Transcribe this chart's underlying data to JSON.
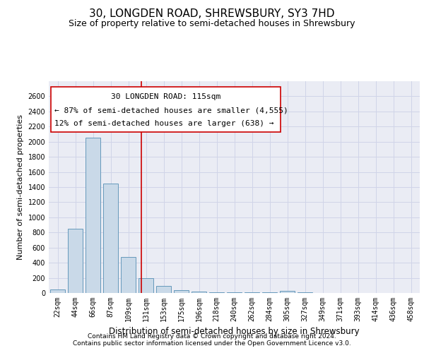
{
  "title": "30, LONGDEN ROAD, SHREWSBURY, SY3 7HD",
  "subtitle": "Size of property relative to semi-detached houses in Shrewsbury",
  "xlabel": "Distribution of semi-detached houses by size in Shrewsbury",
  "ylabel": "Number of semi-detached properties",
  "footnote1": "Contains HM Land Registry data © Crown copyright and database right 2024.",
  "footnote2": "Contains public sector information licensed under the Open Government Licence v3.0.",
  "bar_labels": [
    "22sqm",
    "44sqm",
    "66sqm",
    "87sqm",
    "109sqm",
    "131sqm",
    "153sqm",
    "175sqm",
    "196sqm",
    "218sqm",
    "240sqm",
    "262sqm",
    "284sqm",
    "305sqm",
    "327sqm",
    "349sqm",
    "371sqm",
    "393sqm",
    "414sqm",
    "436sqm",
    "458sqm"
  ],
  "bar_values": [
    50,
    850,
    2050,
    1450,
    480,
    200,
    90,
    40,
    20,
    10,
    5,
    5,
    5,
    30,
    5,
    3,
    3,
    3,
    3,
    3,
    3
  ],
  "bar_color": "#c9d9e8",
  "bar_edge_color": "#6699bb",
  "grid_color": "#d0d4e8",
  "background_color": "#eaecf4",
  "annotation_box_color": "#cc0000",
  "vline_color": "#cc0000",
  "vline_x": 4.72,
  "annotation_text_line1": "30 LONGDEN ROAD: 115sqm",
  "annotation_text_line2": "← 87% of semi-detached houses are smaller (4,555)",
  "annotation_text_line3": "12% of semi-detached houses are larger (638) →",
  "ylim_max": 2800,
  "yticks": [
    0,
    200,
    400,
    600,
    800,
    1000,
    1200,
    1400,
    1600,
    1800,
    2000,
    2200,
    2400,
    2600
  ],
  "title_fontsize": 11,
  "subtitle_fontsize": 9,
  "annotation_fontsize": 8,
  "tick_fontsize": 7,
  "ylabel_fontsize": 8,
  "xlabel_fontsize": 8.5,
  "footnote_fontsize": 6.5
}
